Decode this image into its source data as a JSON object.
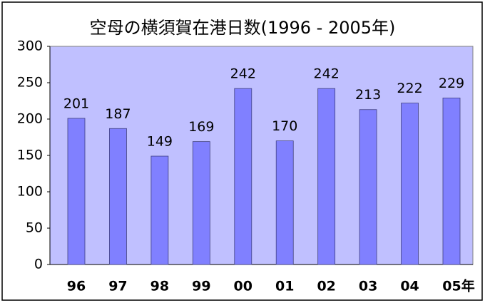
{
  "chart_data": {
    "type": "bar",
    "title": "空母の横須賀在港日数(1996 - 2005年)",
    "categories": [
      "96",
      "97",
      "98",
      "99",
      "00",
      "01",
      "02",
      "03",
      "04",
      "05年"
    ],
    "values": [
      201,
      187,
      149,
      169,
      242,
      170,
      242,
      213,
      222,
      229
    ],
    "color": "#8080ff",
    "background": "#c0c0ff",
    "ylim": [
      0,
      300
    ],
    "yticks": [
      0,
      50,
      100,
      150,
      200,
      250,
      300
    ],
    "grid": false
  }
}
